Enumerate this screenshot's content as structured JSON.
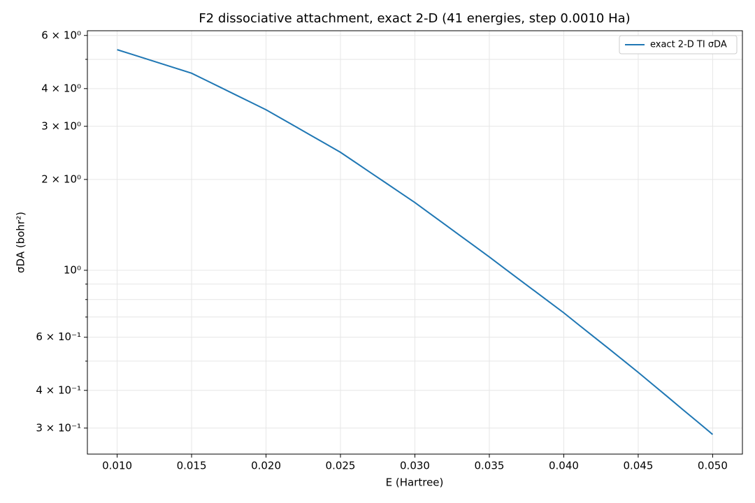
{
  "chart_data": {
    "type": "line",
    "title": "F2 dissociative attachment, exact 2-D  (41 energies, step 0.0010 Ha)",
    "x_label": "E (Hartree)",
    "y_label": "σDA (bohr²)",
    "y_scale": "log",
    "grid": true,
    "legend_position": "upper right",
    "x": [
      0.01,
      0.011,
      0.012,
      0.013,
      0.014,
      0.015,
      0.016,
      0.017,
      0.018,
      0.019,
      0.02,
      0.021,
      0.022,
      0.023,
      0.024,
      0.025,
      0.026,
      0.027,
      0.028,
      0.029,
      0.03,
      0.031,
      0.032,
      0.033,
      0.034,
      0.035,
      0.036,
      0.037,
      0.038,
      0.039,
      0.04,
      0.041,
      0.042,
      0.043,
      0.044,
      0.045,
      0.046,
      0.047,
      0.048,
      0.049,
      0.05
    ],
    "series": [
      {
        "name": "exact 2-D TI σDA",
        "color": "#1f77b4",
        "values": [
          5.383,
          5.193,
          5.01,
          4.833,
          4.662,
          4.498,
          4.255,
          4.024,
          3.805,
          3.599,
          3.404,
          3.19,
          2.99,
          2.802,
          2.626,
          2.46,
          2.279,
          2.11,
          1.955,
          1.81,
          1.677,
          1.543,
          1.42,
          1.307,
          1.203,
          1.107,
          1.016,
          0.933,
          0.857,
          0.787,
          0.723,
          0.66,
          0.603,
          0.551,
          0.503,
          0.459,
          0.4175,
          0.38,
          0.3454,
          0.3143,
          0.2858
        ]
      }
    ],
    "xlim": [
      0.008,
      0.052
    ],
    "xticks": [
      {
        "value": 0.01,
        "label": "0.010"
      },
      {
        "value": 0.015,
        "label": "0.015"
      },
      {
        "value": 0.02,
        "label": "0.020"
      },
      {
        "value": 0.025,
        "label": "0.025"
      },
      {
        "value": 0.03,
        "label": "0.030"
      },
      {
        "value": 0.035,
        "label": "0.035"
      },
      {
        "value": 0.04,
        "label": "0.040"
      },
      {
        "value": 0.045,
        "label": "0.045"
      },
      {
        "value": 0.05,
        "label": "0.050"
      }
    ],
    "ylim": [
      0.246,
      6.22
    ],
    "yticks": [
      {
        "value": 0.3,
        "label": "3 × 10⁻¹"
      },
      {
        "value": 0.4,
        "label": "4 × 10⁻¹"
      },
      {
        "value": 0.6,
        "label": "6 × 10⁻¹"
      },
      {
        "value": 1,
        "label": "10⁰"
      },
      {
        "value": 2,
        "label": "2 × 10⁰"
      },
      {
        "value": 3,
        "label": "3 × 10⁰"
      },
      {
        "value": 4,
        "label": "4 × 10⁰"
      },
      {
        "value": 6,
        "label": "6 × 10⁰"
      }
    ],
    "minor_yticks": [
      0.5,
      0.7,
      0.8,
      0.9,
      5
    ]
  }
}
